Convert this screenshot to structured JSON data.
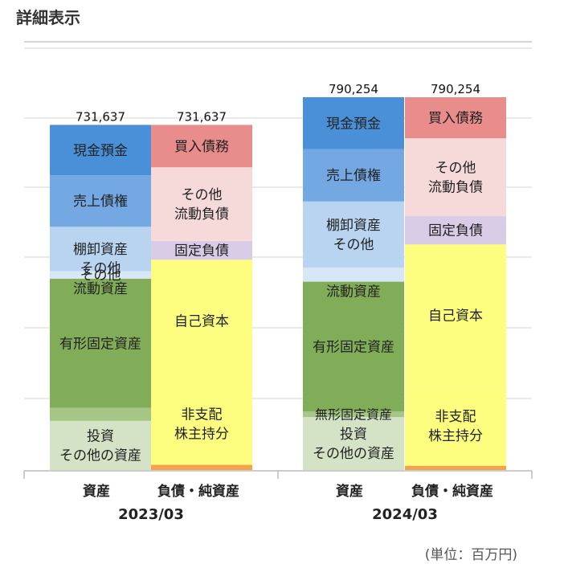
{
  "title": "詳細表示",
  "unit_note": "(単位：百万円)",
  "chart_data": {
    "type": "bar",
    "stacked": true,
    "title": "",
    "ymax": 800000,
    "colors": {
      "cash": "#4a90d9",
      "receivables": "#73a8e2",
      "inventory": "#b9d4f1",
      "other_current_assets": "#d7e7f7",
      "tangible": "#82ad58",
      "intangible": "#a6c686",
      "investments": "#d4e2c6",
      "payables": "#e88c8c",
      "other_current_liab": "#f6dada",
      "fixed_liab": "#d9cce7",
      "equity": "#fdfd80",
      "minority": "#f5a24d"
    },
    "years": [
      {
        "period": "2023/03",
        "assets_total": 731637,
        "liab_total": 731637,
        "assets_total_label": "731,637",
        "liab_total_label": "731,637",
        "assets": [
          {
            "key": "cash",
            "label": [
              "現金預金"
            ],
            "value": 107000
          },
          {
            "key": "receivables",
            "label": [
              "売上債権"
            ],
            "value": 109000
          },
          {
            "key": "inventory",
            "label": [
              "棚卸資産"
            ],
            "value": 94000
          },
          {
            "key": "other_current_assets",
            "label": [
              "その他"
            ],
            "value": 16000
          },
          {
            "key": "tangible",
            "label": [
              "有形固定資産"
            ],
            "value": 274000
          },
          {
            "key": "intangible",
            "label": [],
            "value": 27500
          },
          {
            "key": "investments",
            "label": [
              "投資",
              "その他の資産"
            ],
            "value": 104137
          }
        ],
        "liabilities": [
          {
            "key": "payables",
            "label": [
              "買入債務"
            ],
            "value": 90000
          },
          {
            "key": "other_current_liab",
            "label": [
              "その他",
              "流動負債"
            ],
            "value": 156000
          },
          {
            "key": "fixed_liab",
            "label": [
              "固定負債"
            ],
            "value": 40000
          },
          {
            "key": "equity",
            "label": [
              "自己資本"
            ],
            "value": 260000
          },
          {
            "key": "equity",
            "label": [
              "非支配",
              "株主持分"
            ],
            "value": 174637
          },
          {
            "key": "minority",
            "label": [],
            "value": 11000
          }
        ],
        "other_current_assets_extra_label": "流動資産"
      },
      {
        "period": "2024/03",
        "assets_total": 790254,
        "liab_total": 790254,
        "assets_total_label": "790,254",
        "liab_total_label": "790,254",
        "assets": [
          {
            "key": "cash",
            "label": [
              "現金預金"
            ],
            "value": 110000
          },
          {
            "key": "receivables",
            "label": [
              "売上債権"
            ],
            "value": 111000
          },
          {
            "key": "inventory",
            "label": [
              "棚卸資産",
              "その他"
            ],
            "value": 140000
          },
          {
            "key": "other_current_assets",
            "label": [],
            "value": 30000
          },
          {
            "key": "tangible",
            "label": [
              "有形固定資産"
            ],
            "value": 275000
          },
          {
            "key": "intangible",
            "label": [],
            "value": 12000
          },
          {
            "key": "investments",
            "label": [
              "投資",
              "その他の資産"
            ],
            "value": 112254
          }
        ],
        "liabilities": [
          {
            "key": "payables",
            "label": [
              "買入債務"
            ],
            "value": 87000
          },
          {
            "key": "other_current_liab",
            "label": [
              "その他",
              "流動負債"
            ],
            "value": 165000
          },
          {
            "key": "fixed_liab",
            "label": [
              "固定負債"
            ],
            "value": 60000
          },
          {
            "key": "equity",
            "label": [
              "自己資本"
            ],
            "value": 300000
          },
          {
            "key": "equity",
            "label": [
              "非支配",
              "株主持分"
            ],
            "value": 169254
          },
          {
            "key": "minority",
            "label": [],
            "value": 9000
          }
        ],
        "other_current_assets_extra_label": "流動資産",
        "intangible_label": "無形固定資産"
      }
    ],
    "x_labels": {
      "assets": "資産",
      "liabilities": "負債・純資産"
    }
  }
}
